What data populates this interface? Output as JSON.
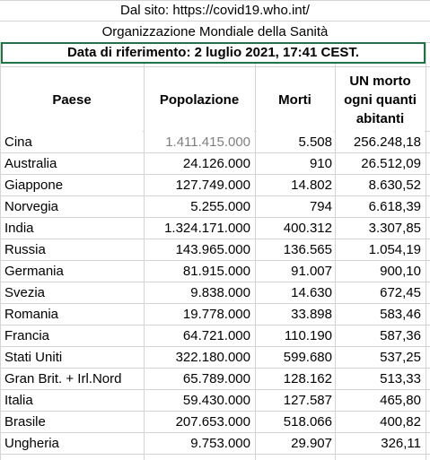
{
  "header": {
    "source_line": "Dal sito: https://covid19.who.int/",
    "org_line": "Organizzazione Mondiale della Sanità",
    "reference_line": "Data di riferimento: 2 luglio 2021, 17:41 CEST."
  },
  "columns": {
    "country": "Paese",
    "population": "Popolazione",
    "deaths": "Morti",
    "ratio_line1": "UN morto",
    "ratio_line2": "ogni quanti",
    "ratio_line3": "abitanti"
  },
  "rows": [
    {
      "country": "Cina",
      "population": "1.411.415.000",
      "deaths": "5.508",
      "ratio": "256.248,18"
    },
    {
      "country": "Australia",
      "population": "24.126.000",
      "deaths": "910",
      "ratio": "26.512,09"
    },
    {
      "country": "Giappone",
      "population": "127.749.000",
      "deaths": "14.802",
      "ratio": "8.630,52"
    },
    {
      "country": "Norvegia",
      "population": "5.255.000",
      "deaths": "794",
      "ratio": "6.618,39"
    },
    {
      "country": "India",
      "population": "1.324.171.000",
      "deaths": "400.312",
      "ratio": "3.307,85"
    },
    {
      "country": "Russia",
      "population": "143.965.000",
      "deaths": "136.565",
      "ratio": "1.054,19"
    },
    {
      "country": "Germania",
      "population": "81.915.000",
      "deaths": "91.007",
      "ratio": "900,10"
    },
    {
      "country": "Svezia",
      "population": "9.838.000",
      "deaths": "14.630",
      "ratio": "672,45"
    },
    {
      "country": "Romania",
      "population": "19.778.000",
      "deaths": "33.898",
      "ratio": "583,46"
    },
    {
      "country": "Francia",
      "population": "64.721.000",
      "deaths": "110.190",
      "ratio": "587,36"
    },
    {
      "country": "Stati Uniti",
      "population": "322.180.000",
      "deaths": "599.680",
      "ratio": "537,25"
    },
    {
      "country": "Gran Brit. + Irl.Nord",
      "population": "65.789.000",
      "deaths": "128.162",
      "ratio": "513,33"
    },
    {
      "country": "Italia",
      "population": "59.430.000",
      "deaths": "127.587",
      "ratio": "465,80"
    },
    {
      "country": "Brasile",
      "population": "207.653.000",
      "deaths": "518.066",
      "ratio": "400,82"
    },
    {
      "country": "Ungheria",
      "population": "9.753.000",
      "deaths": "29.907",
      "ratio": "326,11"
    }
  ],
  "styles": {
    "selection_border_color": "#217346",
    "gridline_color": "#d4d4d4",
    "muted_value_color": "#7f7f7f"
  }
}
